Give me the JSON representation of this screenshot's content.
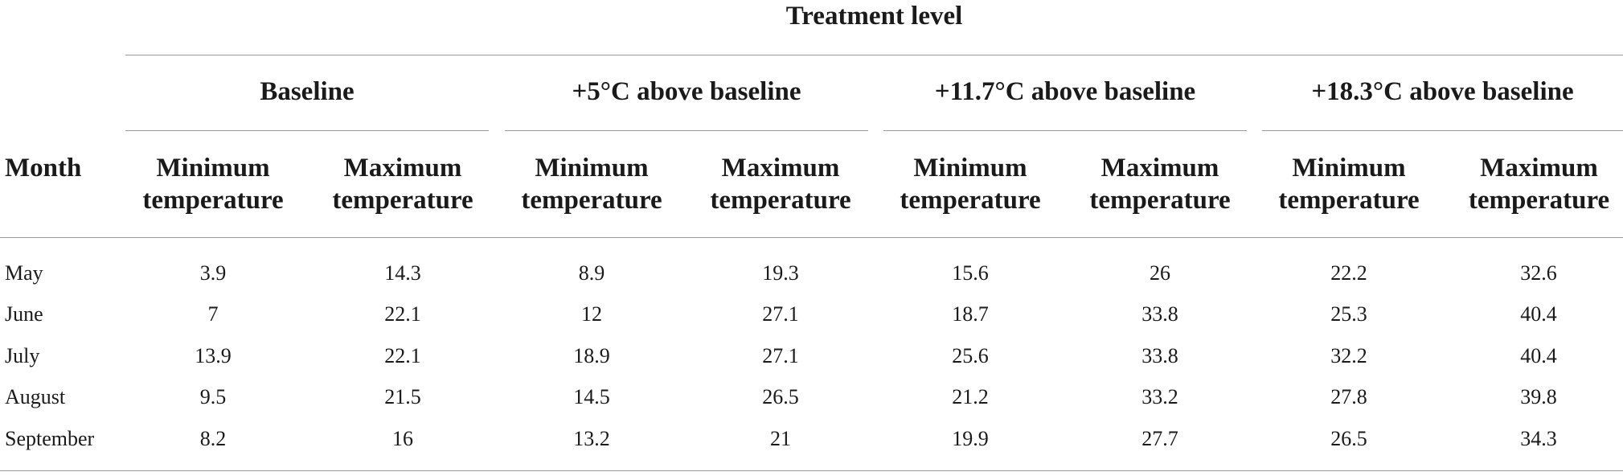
{
  "table": {
    "title": "Treatment level",
    "month_header": "Month",
    "groups": [
      "Baseline",
      "+5°C above baseline",
      "+11.7°C above baseline",
      "+18.3°C above baseline"
    ],
    "subheaders": [
      {
        "line1": "Minimum",
        "line2": "temperature"
      },
      {
        "line1": "Maximum",
        "line2": "temperature"
      }
    ],
    "rows": [
      {
        "month": "May",
        "values": [
          "3.9",
          "14.3",
          "8.9",
          "19.3",
          "15.6",
          "26",
          "22.2",
          "32.6"
        ]
      },
      {
        "month": "June",
        "values": [
          "7",
          "22.1",
          "12",
          "27.1",
          "18.7",
          "33.8",
          "25.3",
          "40.4"
        ]
      },
      {
        "month": "July",
        "values": [
          "13.9",
          "22.1",
          "18.9",
          "27.1",
          "25.6",
          "33.8",
          "32.2",
          "40.4"
        ]
      },
      {
        "month": "August",
        "values": [
          "9.5",
          "21.5",
          "14.5",
          "26.5",
          "21.2",
          "33.2",
          "27.8",
          "39.8"
        ]
      },
      {
        "month": "September",
        "values": [
          "8.2",
          "16",
          "13.2",
          "21",
          "19.9",
          "27.7",
          "26.5",
          "34.3"
        ]
      }
    ]
  }
}
